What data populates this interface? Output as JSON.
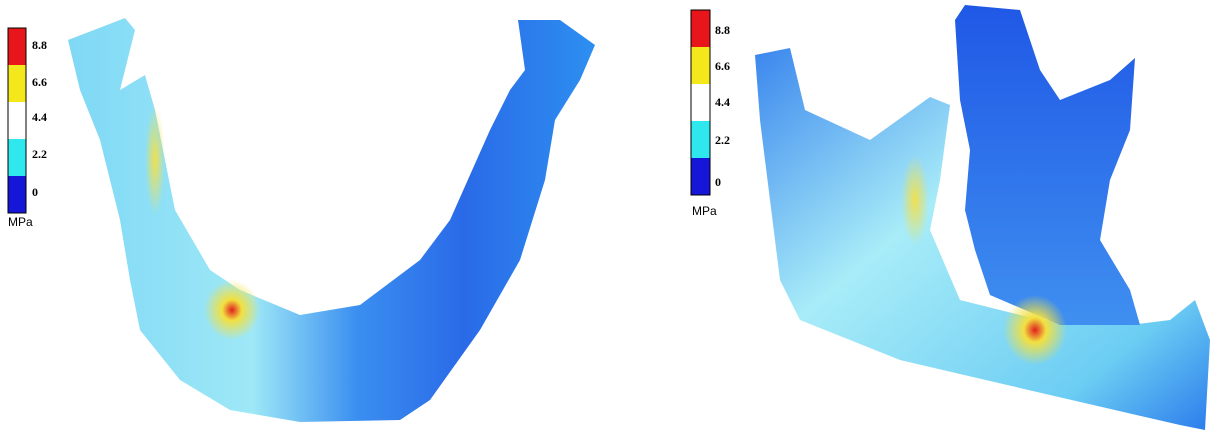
{
  "panels": [
    {
      "legend": {
        "ticks": [
          "8.8",
          "6.6",
          "4.4",
          "2.2",
          "0"
        ],
        "unit": "MPa"
      }
    },
    {
      "legend": {
        "ticks": [
          "8.8",
          "6.6",
          "4.4",
          "2.2",
          "0"
        ],
        "unit": "MPa"
      }
    }
  ]
}
